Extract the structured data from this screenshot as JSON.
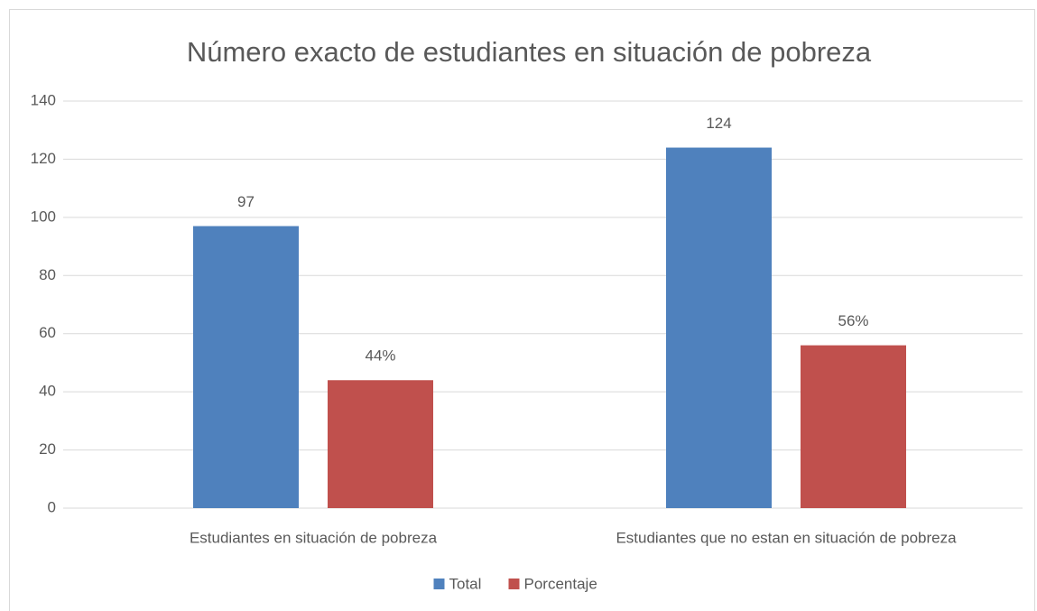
{
  "chart_data": {
    "type": "bar",
    "title": "Número exacto de estudiantes en situación de pobreza",
    "categories": [
      "Estudiantes en situación de pobreza",
      "Estudiantes que no estan en situación de pobreza"
    ],
    "series": [
      {
        "name": "Total",
        "color": "#4f81bd",
        "values": [
          97,
          124
        ]
      },
      {
        "name": "Porcentaje",
        "color": "#c0504d",
        "values": [
          44,
          56
        ],
        "value_labels": [
          "44%",
          "56%"
        ]
      }
    ],
    "ylim": [
      0,
      140
    ],
    "yticks": [
      0,
      20,
      40,
      60,
      80,
      100,
      120,
      140
    ],
    "grid": true,
    "legend": "bottom"
  }
}
